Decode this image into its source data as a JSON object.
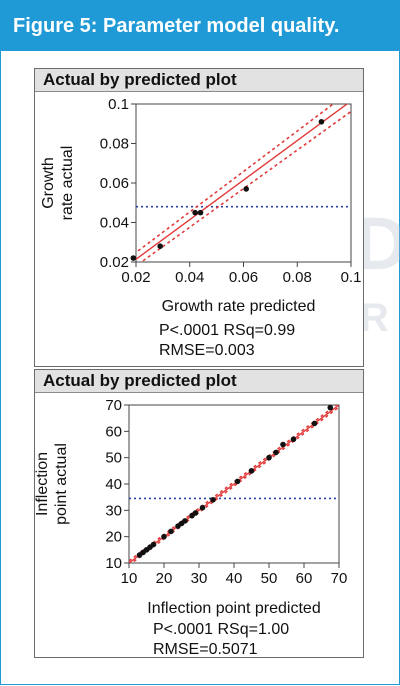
{
  "figure": {
    "title": "Figure 5: Parameter model quality.",
    "accent_color": "#1f9ad6"
  },
  "chart_data": [
    {
      "type": "scatter",
      "title": "Actual by predicted plot",
      "xlabel": "Growth rate predicted",
      "ylabel_lines": [
        "Growth",
        "rate actual"
      ],
      "xlim": [
        0.02,
        0.1
      ],
      "ylim": [
        0.02,
        0.1
      ],
      "x_ticks": [
        "0.02",
        "0.04",
        "0.06",
        "0.08",
        "0.1"
      ],
      "y_ticks": [
        "0.02",
        "0.04",
        "0.06",
        "0.08",
        "0.1"
      ],
      "x": [
        0.019,
        0.029,
        0.042,
        0.044,
        0.061,
        0.089
      ],
      "y": [
        0.022,
        0.028,
        0.045,
        0.045,
        0.057,
        0.091
      ],
      "mean_line": 0.048,
      "fit_line": [
        [
          0.019,
          0.0204
        ],
        [
          0.1,
          0.1015
        ]
      ],
      "ci_upper": [
        [
          0.019,
          0.0238
        ],
        [
          0.1,
          0.1068
        ]
      ],
      "ci_lower": [
        [
          0.019,
          0.0171
        ],
        [
          0.1,
          0.0962
        ]
      ],
      "stats": {
        "p_rsq": "P<.0001 RSq=0.99",
        "rmse": "RMSE=0.003"
      },
      "colors": {
        "points": "#111111",
        "fit": "#e23a3a",
        "mean": "#2a3fa6"
      }
    },
    {
      "type": "scatter",
      "title": "Actual by predicted plot",
      "xlabel": "Inflection point predicted",
      "ylabel_lines": [
        "Inflection",
        "point actual"
      ],
      "xlim": [
        10,
        70
      ],
      "ylim": [
        10,
        70
      ],
      "x_ticks": [
        "10",
        "20",
        "30",
        "40",
        "50",
        "60",
        "70"
      ],
      "y_ticks": [
        "10",
        "20",
        "30",
        "40",
        "50",
        "60",
        "70"
      ],
      "x": [
        13,
        14,
        15,
        16,
        17,
        20,
        22,
        24,
        25,
        26,
        28,
        29,
        31,
        34,
        41,
        45,
        50,
        52,
        54,
        57,
        63,
        67.5
      ],
      "y": [
        13,
        14,
        15,
        16,
        17,
        20,
        22,
        24,
        25,
        26,
        28,
        29,
        31,
        34,
        41,
        45,
        50,
        52,
        55,
        57,
        63,
        69
      ],
      "mean_line": 34.5,
      "fit_line": [
        [
          10,
          10
        ],
        [
          70,
          70
        ]
      ],
      "ci_upper": [
        [
          10,
          10.8
        ],
        [
          70,
          70.8
        ]
      ],
      "ci_lower": [
        [
          10,
          9.2
        ],
        [
          70,
          69.2
        ]
      ],
      "stats": {
        "p_rsq": "P<.0001 RSq=1.00",
        "rmse": "RMSE=0.5071"
      },
      "colors": {
        "points": "#111111",
        "fit": "#e23a3a",
        "mean": "#2a3fa6"
      }
    }
  ]
}
